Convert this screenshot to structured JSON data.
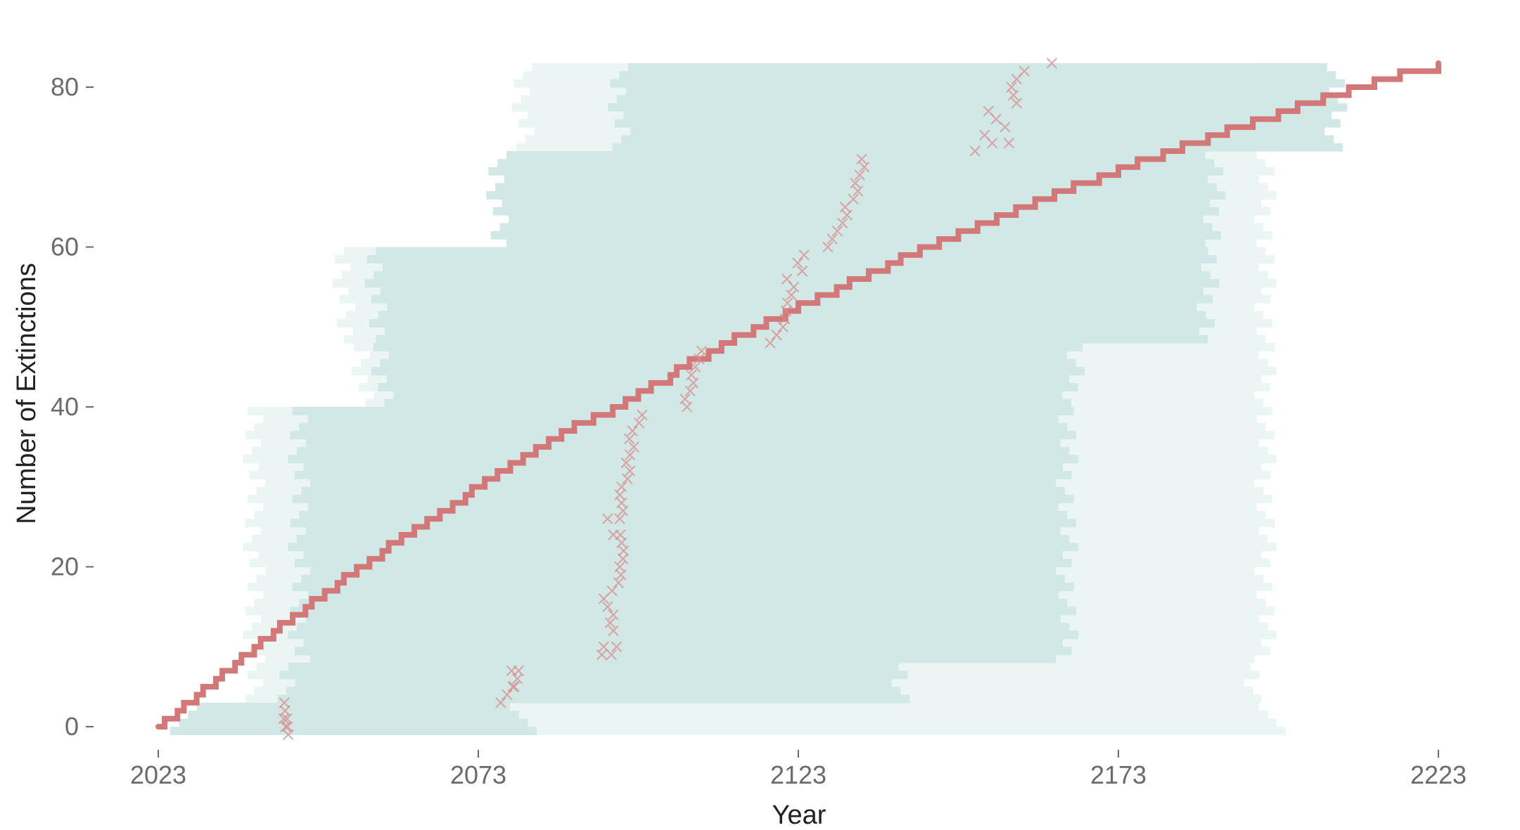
{
  "chart_data": {
    "type": "line",
    "title": "",
    "xlabel": "Year",
    "ylabel": "Number of Extinctions",
    "xlim": [
      2023,
      2223
    ],
    "ylim": [
      -1,
      83
    ],
    "x_ticks": [
      2023,
      2073,
      2123,
      2173,
      2223
    ],
    "y_ticks": [
      0,
      20,
      40,
      60,
      80
    ],
    "grid": false,
    "colors": {
      "line": "#d27878",
      "markers": "#d98c8c",
      "band_inner": "#d2e8e6",
      "band_outer": "#ebf5f3"
    },
    "series": [
      {
        "type": "step",
        "points": [
          [
            2023,
            0
          ],
          [
            2024,
            1
          ],
          [
            2025,
            1
          ],
          [
            2026,
            2
          ],
          [
            2027,
            3
          ],
          [
            2028,
            3
          ],
          [
            2029,
            4
          ],
          [
            2030,
            5
          ],
          [
            2031,
            5
          ],
          [
            2032,
            6
          ],
          [
            2033,
            7
          ],
          [
            2034,
            7
          ],
          [
            2035,
            8
          ],
          [
            2036,
            9
          ],
          [
            2037,
            9
          ],
          [
            2038,
            10
          ],
          [
            2039,
            11
          ],
          [
            2040,
            11
          ],
          [
            2041,
            12
          ],
          [
            2042,
            13
          ],
          [
            2043,
            13
          ],
          [
            2044,
            14
          ],
          [
            2045,
            14
          ],
          [
            2046,
            15
          ],
          [
            2047,
            16
          ],
          [
            2048,
            16
          ],
          [
            2049,
            17
          ],
          [
            2050,
            17
          ],
          [
            2051,
            18
          ],
          [
            2052,
            19
          ],
          [
            2053,
            19
          ],
          [
            2054,
            20
          ],
          [
            2055,
            20
          ],
          [
            2056,
            21
          ],
          [
            2057,
            21
          ],
          [
            2058,
            22
          ],
          [
            2059,
            23
          ],
          [
            2060,
            23
          ],
          [
            2061,
            24
          ],
          [
            2062,
            24
          ],
          [
            2063,
            25
          ],
          [
            2064,
            25
          ],
          [
            2065,
            26
          ],
          [
            2066,
            26
          ],
          [
            2067,
            27
          ],
          [
            2068,
            27
          ],
          [
            2069,
            28
          ],
          [
            2070,
            28
          ],
          [
            2071,
            29
          ],
          [
            2072,
            30
          ],
          [
            2073,
            30
          ],
          [
            2074,
            31
          ],
          [
            2075,
            31
          ],
          [
            2076,
            32
          ],
          [
            2077,
            32
          ],
          [
            2078,
            33
          ],
          [
            2079,
            33
          ],
          [
            2080,
            34
          ],
          [
            2081,
            34
          ],
          [
            2082,
            35
          ],
          [
            2083,
            35
          ],
          [
            2084,
            36
          ],
          [
            2085,
            36
          ],
          [
            2086,
            37
          ],
          [
            2087,
            37
          ],
          [
            2088,
            38
          ],
          [
            2090,
            38
          ],
          [
            2091,
            39
          ],
          [
            2093,
            39
          ],
          [
            2094,
            40
          ],
          [
            2095,
            40
          ],
          [
            2096,
            41
          ],
          [
            2097,
            41
          ],
          [
            2098,
            42
          ],
          [
            2099,
            42
          ],
          [
            2100,
            43
          ],
          [
            2102,
            43
          ],
          [
            2103,
            44
          ],
          [
            2104,
            45
          ],
          [
            2105,
            45
          ],
          [
            2106,
            46
          ],
          [
            2108,
            46
          ],
          [
            2109,
            47
          ],
          [
            2110,
            47
          ],
          [
            2111,
            48
          ],
          [
            2112,
            48
          ],
          [
            2113,
            49
          ],
          [
            2115,
            49
          ],
          [
            2116,
            50
          ],
          [
            2117,
            50
          ],
          [
            2118,
            51
          ],
          [
            2120,
            51
          ],
          [
            2121,
            52
          ],
          [
            2122,
            52
          ],
          [
            2123,
            53
          ],
          [
            2125,
            53
          ],
          [
            2126,
            54
          ],
          [
            2128,
            54
          ],
          [
            2129,
            55
          ],
          [
            2130,
            55
          ],
          [
            2131,
            56
          ],
          [
            2133,
            56
          ],
          [
            2134,
            57
          ],
          [
            2136,
            57
          ],
          [
            2137,
            58
          ],
          [
            2138,
            58
          ],
          [
            2139,
            59
          ],
          [
            2141,
            59
          ],
          [
            2142,
            60
          ],
          [
            2144,
            60
          ],
          [
            2145,
            61
          ],
          [
            2147,
            61
          ],
          [
            2148,
            62
          ],
          [
            2150,
            62
          ],
          [
            2151,
            63
          ],
          [
            2153,
            63
          ],
          [
            2154,
            64
          ],
          [
            2156,
            64
          ],
          [
            2157,
            65
          ],
          [
            2159,
            65
          ],
          [
            2160,
            66
          ],
          [
            2162,
            66
          ],
          [
            2163,
            67
          ],
          [
            2165,
            67
          ],
          [
            2166,
            68
          ],
          [
            2169,
            68
          ],
          [
            2170,
            69
          ],
          [
            2172,
            69
          ],
          [
            2173,
            70
          ],
          [
            2175,
            70
          ],
          [
            2176,
            71
          ],
          [
            2179,
            71
          ],
          [
            2180,
            72
          ],
          [
            2182,
            72
          ],
          [
            2183,
            73
          ],
          [
            2186,
            73
          ],
          [
            2187,
            74
          ],
          [
            2189,
            74
          ],
          [
            2190,
            75
          ],
          [
            2193,
            75
          ],
          [
            2194,
            76
          ],
          [
            2197,
            76
          ],
          [
            2198,
            77
          ],
          [
            2200,
            77
          ],
          [
            2201,
            78
          ],
          [
            2204,
            78
          ],
          [
            2205,
            79
          ],
          [
            2208,
            79
          ],
          [
            2209,
            80
          ],
          [
            2212,
            80
          ],
          [
            2213,
            81
          ],
          [
            2216,
            81
          ],
          [
            2217,
            82
          ],
          [
            2222,
            82
          ],
          [
            2223,
            83
          ]
        ]
      },
      {
        "type": "scatter",
        "marker": "x",
        "points": [
          [
            2042.9,
            0
          ],
          [
            2043.1,
            1
          ],
          [
            2042.8,
            2
          ],
          [
            2042.6,
            1
          ],
          [
            2043.2,
            0
          ],
          [
            2043.3,
            -1
          ],
          [
            2042.7,
            3
          ],
          [
            2076.5,
            3
          ],
          [
            2077.5,
            4
          ],
          [
            2078.4,
            5
          ],
          [
            2079.1,
            6
          ],
          [
            2078.2,
            7
          ],
          [
            2079.3,
            7
          ],
          [
            2078.6,
            5
          ],
          [
            2092.3,
            9
          ],
          [
            2092.6,
            10
          ],
          [
            2093.8,
            9
          ],
          [
            2094.6,
            10
          ],
          [
            2094.1,
            12
          ],
          [
            2093.6,
            13
          ],
          [
            2094.1,
            14
          ],
          [
            2093.2,
            15
          ],
          [
            2092.6,
            16
          ],
          [
            2093.9,
            17
          ],
          [
            2094.9,
            18
          ],
          [
            2095.3,
            19
          ],
          [
            2095.1,
            20
          ],
          [
            2095.6,
            21
          ],
          [
            2095.7,
            22
          ],
          [
            2095.4,
            23
          ],
          [
            2095.2,
            24
          ],
          [
            2094.1,
            24
          ],
          [
            2095.1,
            26
          ],
          [
            2093.2,
            26
          ],
          [
            2095.6,
            27
          ],
          [
            2095.4,
            28
          ],
          [
            2095.1,
            29
          ],
          [
            2095.4,
            30
          ],
          [
            2096.3,
            31
          ],
          [
            2096.7,
            32
          ],
          [
            2096.1,
            33
          ],
          [
            2096.7,
            34
          ],
          [
            2097.3,
            35
          ],
          [
            2096.6,
            36
          ],
          [
            2097.1,
            37
          ],
          [
            2098.1,
            38
          ],
          [
            2098.6,
            39
          ],
          [
            2105.6,
            40
          ],
          [
            2105.3,
            41
          ],
          [
            2106.1,
            42
          ],
          [
            2106.6,
            43
          ],
          [
            2106.3,
            44
          ],
          [
            2106.9,
            45
          ],
          [
            2107.5,
            46
          ],
          [
            2107.9,
            47
          ],
          [
            2118.6,
            48
          ],
          [
            2119.6,
            49
          ],
          [
            2120.6,
            50
          ],
          [
            2120.9,
            51
          ],
          [
            2121.1,
            52
          ],
          [
            2121.3,
            53
          ],
          [
            2121.9,
            54
          ],
          [
            2122.3,
            55
          ],
          [
            2121.2,
            56
          ],
          [
            2123.6,
            57
          ],
          [
            2122.9,
            58
          ],
          [
            2123.9,
            59
          ],
          [
            2127.6,
            60
          ],
          [
            2128.3,
            61
          ],
          [
            2129.1,
            62
          ],
          [
            2129.9,
            63
          ],
          [
            2130.6,
            64
          ],
          [
            2130.3,
            65
          ],
          [
            2131.6,
            66
          ],
          [
            2132.3,
            67
          ],
          [
            2131.9,
            68
          ],
          [
            2132.6,
            69
          ],
          [
            2133.3,
            70
          ],
          [
            2132.9,
            71
          ],
          [
            2150.6,
            72
          ],
          [
            2153.3,
            73
          ],
          [
            2152.1,
            74
          ],
          [
            2155.9,
            73
          ],
          [
            2155.3,
            75
          ],
          [
            2153.9,
            76
          ],
          [
            2152.7,
            77
          ],
          [
            2157.1,
            78
          ],
          [
            2156.6,
            79
          ],
          [
            2156.3,
            80
          ],
          [
            2157.1,
            81
          ],
          [
            2158.3,
            82
          ],
          [
            2162.6,
            83
          ]
        ]
      }
    ]
  }
}
